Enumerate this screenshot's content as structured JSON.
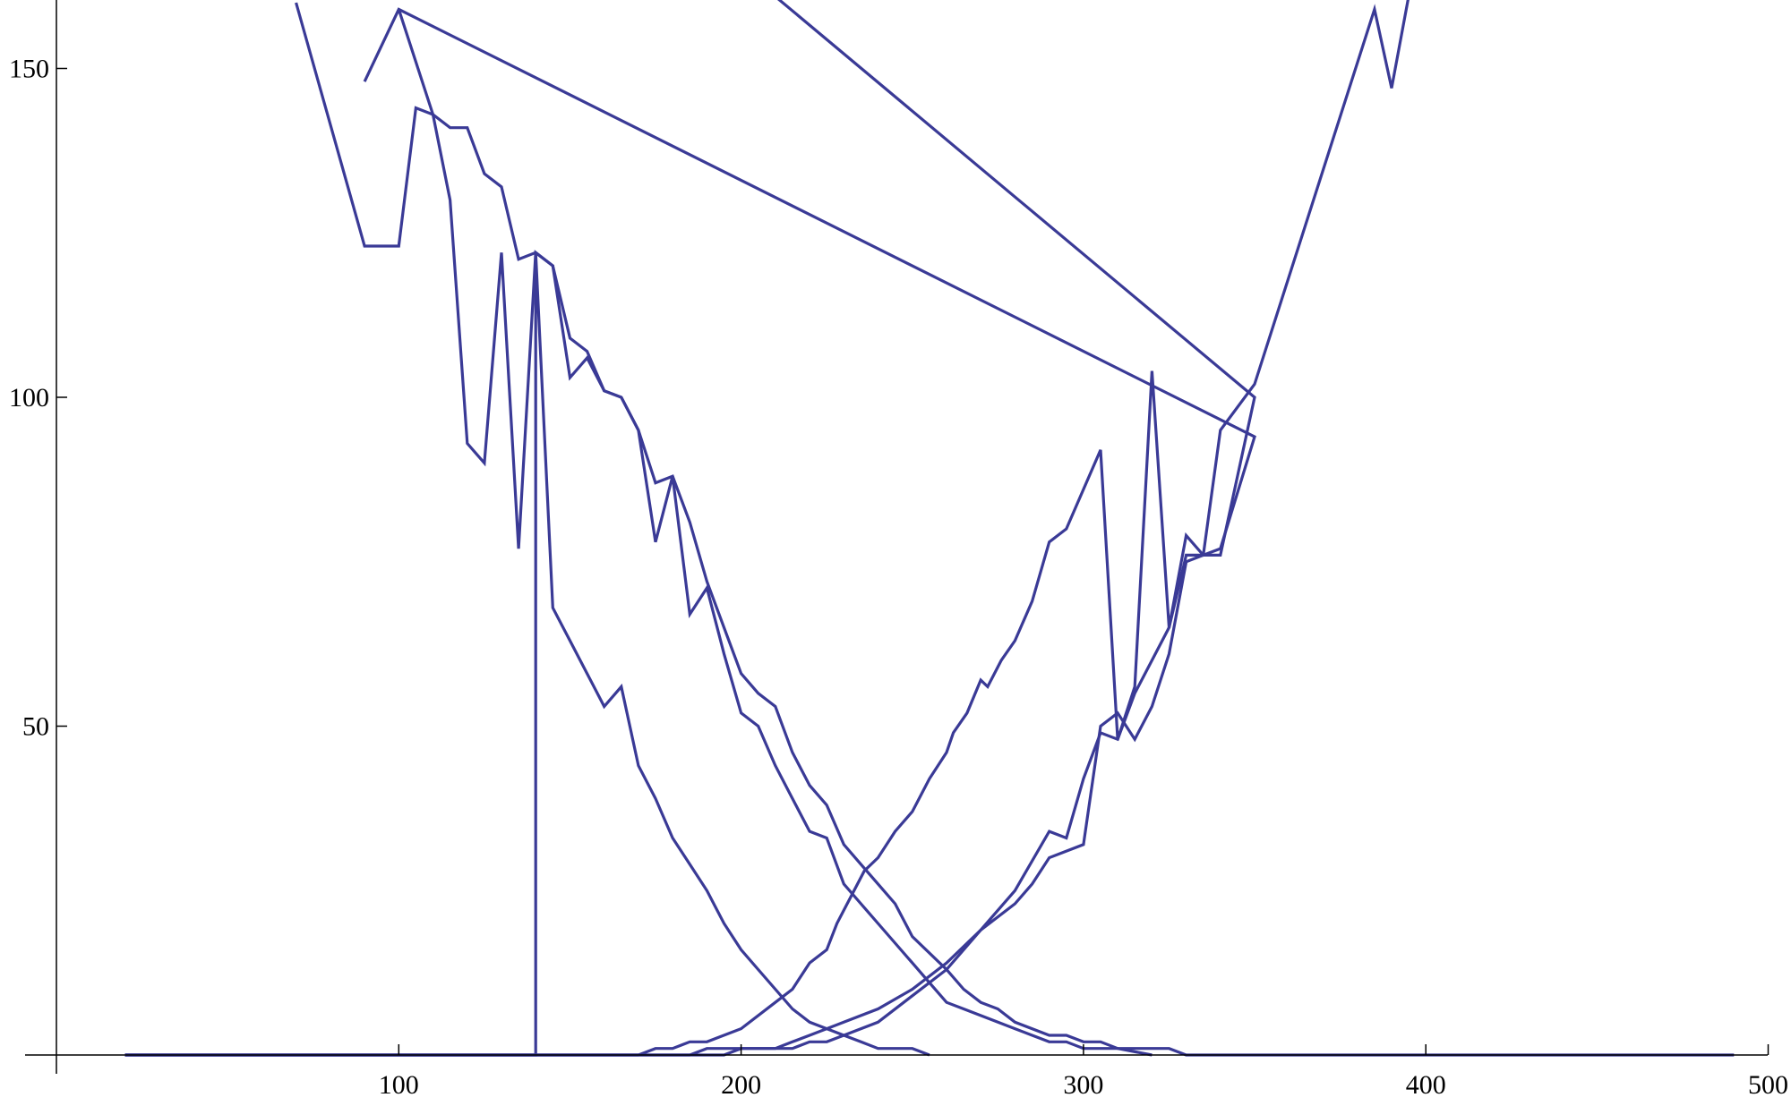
{
  "chart_data": {
    "type": "line",
    "title": "",
    "xlabel": "",
    "ylabel": "",
    "xlim": [
      0,
      500
    ],
    "ylim": [
      0,
      160
    ],
    "x_ticks": [
      100,
      200,
      300,
      400,
      500
    ],
    "y_ticks": [
      50,
      100,
      150
    ],
    "grid": false,
    "legend": "none",
    "line_color": "#3a3a96",
    "series": [
      {
        "points": [
          [
            20,
            0
          ],
          [
            170,
            0
          ],
          [
            175,
            1
          ],
          [
            180,
            1
          ],
          [
            185,
            2
          ],
          [
            190,
            2
          ],
          [
            200,
            4
          ],
          [
            210,
            8
          ],
          [
            215,
            10
          ],
          [
            220,
            14
          ],
          [
            225,
            16
          ],
          [
            228,
            20
          ],
          [
            232,
            24
          ],
          [
            236,
            28
          ],
          [
            240,
            30
          ],
          [
            245,
            34
          ],
          [
            250,
            37
          ],
          [
            255,
            42
          ],
          [
            260,
            46
          ],
          [
            262,
            49
          ],
          [
            266,
            52
          ],
          [
            270,
            57
          ],
          [
            272,
            56
          ],
          [
            276,
            60
          ],
          [
            280,
            63
          ],
          [
            285,
            69
          ],
          [
            290,
            78
          ],
          [
            295,
            80
          ],
          [
            300,
            86
          ],
          [
            305,
            92
          ],
          [
            310,
            48
          ],
          [
            315,
            56
          ],
          [
            320,
            104
          ],
          [
            325,
            65
          ],
          [
            330,
            79
          ],
          [
            335,
            76
          ],
          [
            340,
            77
          ],
          [
            350,
            94
          ],
          [
            100,
            159
          ],
          [
            90,
            148
          ]
        ]
      },
      {
        "points": [
          [
            20,
            0
          ],
          [
            185,
            0
          ],
          [
            190,
            1
          ],
          [
            200,
            1
          ],
          [
            215,
            1
          ],
          [
            220,
            2
          ],
          [
            225,
            2
          ],
          [
            230,
            3
          ],
          [
            240,
            5
          ],
          [
            250,
            9
          ],
          [
            260,
            13
          ],
          [
            270,
            19
          ],
          [
            280,
            25
          ],
          [
            290,
            34
          ],
          [
            295,
            33
          ],
          [
            300,
            42
          ],
          [
            305,
            49
          ],
          [
            310,
            48
          ],
          [
            315,
            55
          ],
          [
            325,
            65
          ],
          [
            330,
            76
          ],
          [
            335,
            76
          ],
          [
            340,
            95
          ],
          [
            350,
            102
          ],
          [
            385,
            159
          ],
          [
            390,
            147
          ],
          [
            400,
            175
          ]
        ]
      },
      {
        "points": [
          [
            20,
            0
          ],
          [
            195,
            0
          ],
          [
            200,
            1
          ],
          [
            210,
            1
          ],
          [
            215,
            2
          ],
          [
            220,
            3
          ],
          [
            230,
            5
          ],
          [
            240,
            7
          ],
          [
            250,
            10
          ],
          [
            260,
            14
          ],
          [
            270,
            19
          ],
          [
            280,
            23
          ],
          [
            285,
            26
          ],
          [
            290,
            30
          ],
          [
            300,
            32
          ],
          [
            305,
            50
          ],
          [
            310,
            52
          ],
          [
            315,
            48
          ],
          [
            320,
            53
          ],
          [
            325,
            61
          ],
          [
            330,
            75
          ],
          [
            335,
            76
          ],
          [
            340,
            76
          ],
          [
            350,
            100
          ],
          [
            180,
            174
          ]
        ]
      },
      {
        "points": [
          [
            70,
            160
          ],
          [
            90,
            123
          ],
          [
            100,
            123
          ],
          [
            105,
            144
          ],
          [
            110,
            143
          ],
          [
            115,
            141
          ],
          [
            120,
            141
          ],
          [
            125,
            134
          ],
          [
            130,
            132
          ],
          [
            135,
            121
          ],
          [
            140,
            122
          ],
          [
            145,
            120
          ],
          [
            150,
            109
          ],
          [
            155,
            107
          ],
          [
            160,
            101
          ],
          [
            165,
            100
          ],
          [
            170,
            95
          ],
          [
            175,
            87
          ],
          [
            180,
            88
          ],
          [
            185,
            81
          ],
          [
            190,
            72
          ],
          [
            195,
            65
          ],
          [
            200,
            58
          ],
          [
            205,
            55
          ],
          [
            210,
            53
          ],
          [
            215,
            46
          ],
          [
            220,
            41
          ],
          [
            225,
            38
          ],
          [
            230,
            32
          ],
          [
            235,
            29
          ],
          [
            240,
            26
          ],
          [
            245,
            23
          ],
          [
            250,
            18
          ],
          [
            260,
            13
          ],
          [
            265,
            10
          ],
          [
            270,
            8
          ],
          [
            275,
            7
          ],
          [
            280,
            5
          ],
          [
            290,
            3
          ],
          [
            295,
            3
          ],
          [
            300,
            2
          ],
          [
            305,
            2
          ],
          [
            310,
            1
          ],
          [
            320,
            1
          ],
          [
            325,
            1
          ],
          [
            330,
            0
          ],
          [
            490,
            0
          ]
        ]
      },
      {
        "points": [
          [
            100,
            159
          ],
          [
            110,
            143
          ],
          [
            115,
            130
          ],
          [
            120,
            93
          ],
          [
            125,
            90
          ],
          [
            130,
            122
          ],
          [
            135,
            77
          ],
          [
            140,
            122
          ],
          [
            145,
            120
          ],
          [
            150,
            103
          ],
          [
            155,
            106
          ],
          [
            160,
            101
          ],
          [
            165,
            100
          ],
          [
            170,
            95
          ],
          [
            175,
            78
          ],
          [
            180,
            88
          ],
          [
            185,
            67
          ],
          [
            190,
            71
          ],
          [
            195,
            61
          ],
          [
            200,
            52
          ],
          [
            205,
            50
          ],
          [
            210,
            44
          ],
          [
            215,
            39
          ],
          [
            220,
            34
          ],
          [
            225,
            33
          ],
          [
            230,
            26
          ],
          [
            235,
            23
          ],
          [
            240,
            20
          ],
          [
            245,
            17
          ],
          [
            250,
            14
          ],
          [
            255,
            11
          ],
          [
            260,
            8
          ],
          [
            265,
            7
          ],
          [
            270,
            6
          ],
          [
            275,
            5
          ],
          [
            280,
            4
          ],
          [
            285,
            3
          ],
          [
            290,
            2
          ],
          [
            295,
            2
          ],
          [
            300,
            1
          ],
          [
            310,
            1
          ],
          [
            320,
            0
          ]
        ]
      },
      {
        "points": [
          [
            20,
            0
          ],
          [
            100,
            0
          ],
          [
            140,
            0
          ],
          [
            140,
            122
          ],
          [
            145,
            68
          ],
          [
            150,
            63
          ],
          [
            155,
            58
          ],
          [
            160,
            53
          ],
          [
            165,
            56
          ],
          [
            170,
            44
          ],
          [
            175,
            39
          ],
          [
            180,
            33
          ],
          [
            185,
            29
          ],
          [
            190,
            25
          ],
          [
            195,
            20
          ],
          [
            200,
            16
          ],
          [
            205,
            13
          ],
          [
            210,
            10
          ],
          [
            215,
            7
          ],
          [
            220,
            5
          ],
          [
            225,
            4
          ],
          [
            230,
            3
          ],
          [
            235,
            2
          ],
          [
            240,
            1
          ],
          [
            245,
            1
          ],
          [
            250,
            1
          ],
          [
            255,
            0
          ]
        ]
      }
    ]
  }
}
